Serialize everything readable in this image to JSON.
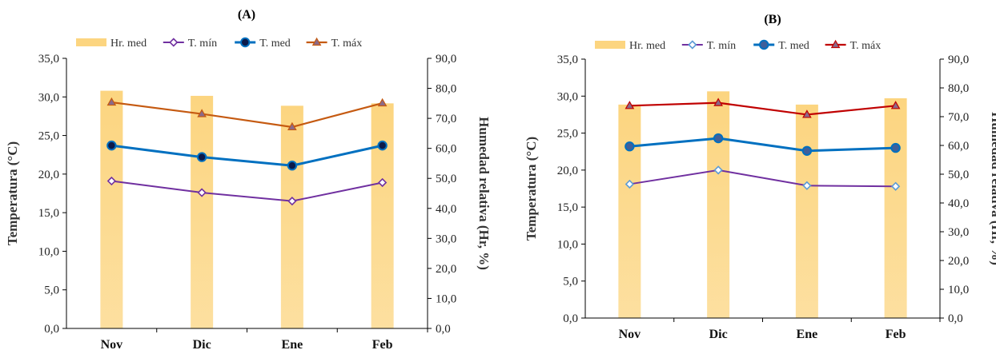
{
  "colors": {
    "bar": "#fcd580",
    "tmin": "#7030a0",
    "tmed_A": "#0070c0",
    "tmax_A": "#c55a11",
    "tmin_marker_B": "#5b9bd5",
    "tmed_B": "#0070c0",
    "tmax_B": "#c00000",
    "tmax_marker": "#8a6a8a"
  },
  "chart_data": [
    {
      "type": "bar",
      "title": "(A)",
      "categories": [
        "Nov",
        "Dic",
        "Ene",
        "Feb"
      ],
      "ylabel": "Temperatura (°C)",
      "y2label": "Humedad relativa (Hr, %)",
      "ylim": [
        0,
        35
      ],
      "y2lim": [
        0,
        90
      ],
      "yticks": [
        "0,0",
        "5,0",
        "10,0",
        "15,0",
        "20,0",
        "25,0",
        "30,0",
        "35,0"
      ],
      "y2ticks": [
        "0,0",
        "10,0",
        "20,0",
        "30,0",
        "40,0",
        "50,0",
        "60,0",
        "70,0",
        "80,0",
        "90,0"
      ],
      "legend_position": "top",
      "series": [
        {
          "name": "Hr. med",
          "kind": "bar",
          "axis": "right",
          "values": [
            79.2,
            77.5,
            74.2,
            75.0
          ]
        },
        {
          "name": "T. mín",
          "kind": "line",
          "axis": "left",
          "marker": "diamond",
          "values": [
            19.1,
            17.6,
            16.5,
            18.9
          ]
        },
        {
          "name": "T. med",
          "kind": "line",
          "axis": "left",
          "marker": "circle",
          "values": [
            23.7,
            22.2,
            21.1,
            23.7
          ]
        },
        {
          "name": "T. máx",
          "kind": "line",
          "axis": "left",
          "marker": "triangle",
          "values": [
            29.3,
            27.8,
            26.1,
            29.2
          ]
        }
      ]
    },
    {
      "type": "bar",
      "title": "(B)",
      "categories": [
        "Nov",
        "Dic",
        "Ene",
        "Feb"
      ],
      "ylabel": "Temperatura (°C)",
      "y2label": "Humedad relativa (Hr, %)",
      "ylim": [
        0,
        35
      ],
      "y2lim": [
        0,
        90
      ],
      "yticks": [
        "0,0",
        "5,0",
        "10,0",
        "15,0",
        "20,0",
        "25,0",
        "30,0",
        "35,0"
      ],
      "y2ticks": [
        "0,0",
        "10,0",
        "20,0",
        "30,0",
        "40,0",
        "50,0",
        "60,0",
        "70,0",
        "80,0",
        "90,0"
      ],
      "legend_position": "top",
      "series": [
        {
          "name": "Hr. med",
          "kind": "bar",
          "axis": "right",
          "values": [
            74.2,
            78.8,
            74.2,
            76.4
          ]
        },
        {
          "name": "T. mín",
          "kind": "line",
          "axis": "left",
          "marker": "diamond",
          "values": [
            18.1,
            20.0,
            17.9,
            17.8
          ]
        },
        {
          "name": "T. med",
          "kind": "line",
          "axis": "left",
          "marker": "circle",
          "values": [
            23.2,
            24.3,
            22.6,
            23.0
          ]
        },
        {
          "name": "T. máx",
          "kind": "line",
          "axis": "left",
          "marker": "triangle",
          "values": [
            28.7,
            29.1,
            27.5,
            28.7
          ]
        }
      ]
    }
  ]
}
